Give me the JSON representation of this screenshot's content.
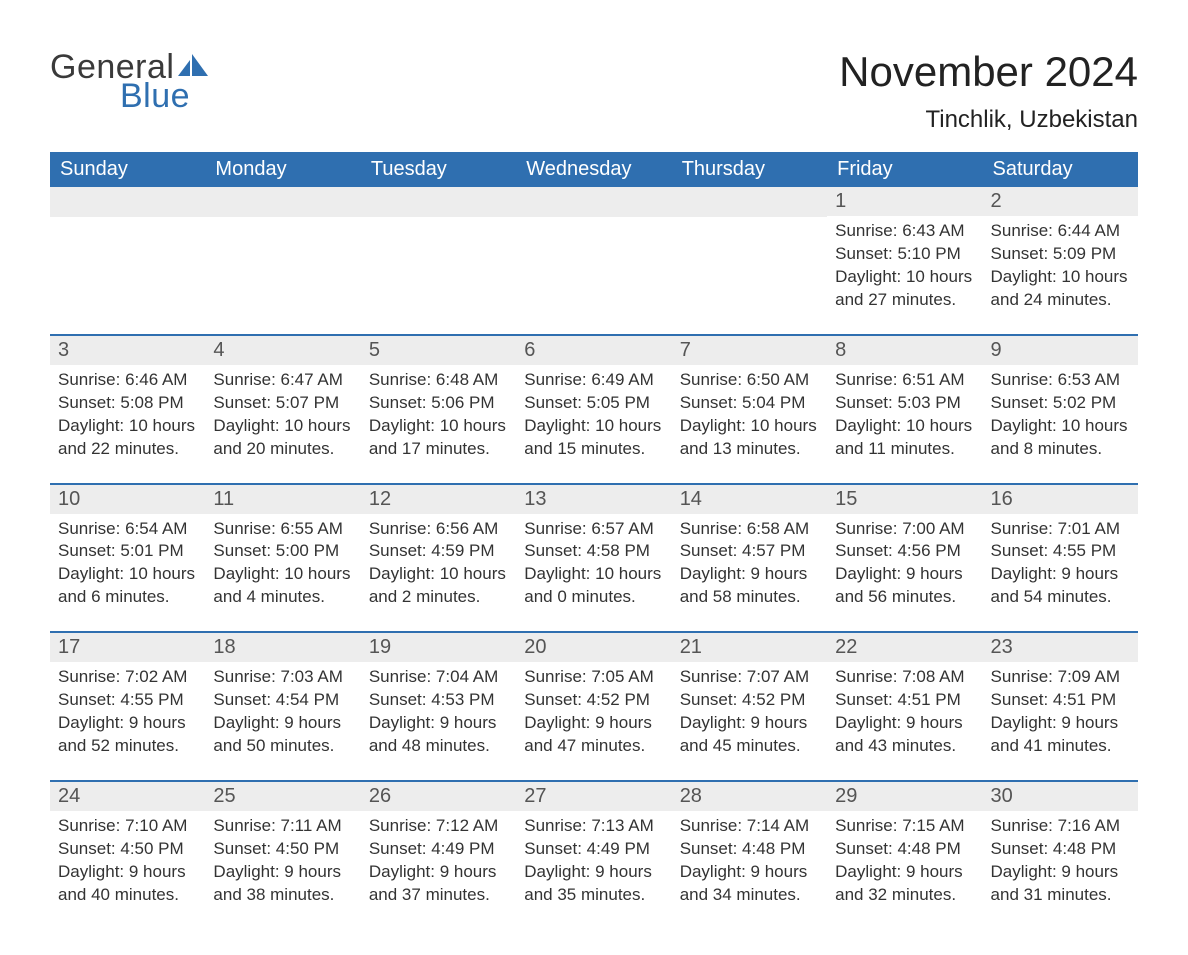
{
  "logo": {
    "text1": "General",
    "text2": "Blue",
    "icon_color": "#2f6fb0"
  },
  "title": "November 2024",
  "location": "Tinchlik, Uzbekistan",
  "colors": {
    "header_bg": "#2f6fb0",
    "header_text": "#ffffff",
    "daynum_bg": "#ededed",
    "row_border": "#2f6fb0",
    "body_text": "#333333",
    "title_text": "#222222"
  },
  "fonts": {
    "title_size_pt": 32,
    "location_size_pt": 18,
    "dow_size_pt": 15,
    "daynum_size_pt": 15,
    "body_size_pt": 13
  },
  "days_of_week": [
    "Sunday",
    "Monday",
    "Tuesday",
    "Wednesday",
    "Thursday",
    "Friday",
    "Saturday"
  ],
  "weeks": [
    [
      null,
      null,
      null,
      null,
      null,
      {
        "n": "1",
        "sunrise": "Sunrise: 6:43 AM",
        "sunset": "Sunset: 5:10 PM",
        "dl1": "Daylight: 10 hours",
        "dl2": "and 27 minutes."
      },
      {
        "n": "2",
        "sunrise": "Sunrise: 6:44 AM",
        "sunset": "Sunset: 5:09 PM",
        "dl1": "Daylight: 10 hours",
        "dl2": "and 24 minutes."
      }
    ],
    [
      {
        "n": "3",
        "sunrise": "Sunrise: 6:46 AM",
        "sunset": "Sunset: 5:08 PM",
        "dl1": "Daylight: 10 hours",
        "dl2": "and 22 minutes."
      },
      {
        "n": "4",
        "sunrise": "Sunrise: 6:47 AM",
        "sunset": "Sunset: 5:07 PM",
        "dl1": "Daylight: 10 hours",
        "dl2": "and 20 minutes."
      },
      {
        "n": "5",
        "sunrise": "Sunrise: 6:48 AM",
        "sunset": "Sunset: 5:06 PM",
        "dl1": "Daylight: 10 hours",
        "dl2": "and 17 minutes."
      },
      {
        "n": "6",
        "sunrise": "Sunrise: 6:49 AM",
        "sunset": "Sunset: 5:05 PM",
        "dl1": "Daylight: 10 hours",
        "dl2": "and 15 minutes."
      },
      {
        "n": "7",
        "sunrise": "Sunrise: 6:50 AM",
        "sunset": "Sunset: 5:04 PM",
        "dl1": "Daylight: 10 hours",
        "dl2": "and 13 minutes."
      },
      {
        "n": "8",
        "sunrise": "Sunrise: 6:51 AM",
        "sunset": "Sunset: 5:03 PM",
        "dl1": "Daylight: 10 hours",
        "dl2": "and 11 minutes."
      },
      {
        "n": "9",
        "sunrise": "Sunrise: 6:53 AM",
        "sunset": "Sunset: 5:02 PM",
        "dl1": "Daylight: 10 hours",
        "dl2": "and 8 minutes."
      }
    ],
    [
      {
        "n": "10",
        "sunrise": "Sunrise: 6:54 AM",
        "sunset": "Sunset: 5:01 PM",
        "dl1": "Daylight: 10 hours",
        "dl2": "and 6 minutes."
      },
      {
        "n": "11",
        "sunrise": "Sunrise: 6:55 AM",
        "sunset": "Sunset: 5:00 PM",
        "dl1": "Daylight: 10 hours",
        "dl2": "and 4 minutes."
      },
      {
        "n": "12",
        "sunrise": "Sunrise: 6:56 AM",
        "sunset": "Sunset: 4:59 PM",
        "dl1": "Daylight: 10 hours",
        "dl2": "and 2 minutes."
      },
      {
        "n": "13",
        "sunrise": "Sunrise: 6:57 AM",
        "sunset": "Sunset: 4:58 PM",
        "dl1": "Daylight: 10 hours",
        "dl2": "and 0 minutes."
      },
      {
        "n": "14",
        "sunrise": "Sunrise: 6:58 AM",
        "sunset": "Sunset: 4:57 PM",
        "dl1": "Daylight: 9 hours",
        "dl2": "and 58 minutes."
      },
      {
        "n": "15",
        "sunrise": "Sunrise: 7:00 AM",
        "sunset": "Sunset: 4:56 PM",
        "dl1": "Daylight: 9 hours",
        "dl2": "and 56 minutes."
      },
      {
        "n": "16",
        "sunrise": "Sunrise: 7:01 AM",
        "sunset": "Sunset: 4:55 PM",
        "dl1": "Daylight: 9 hours",
        "dl2": "and 54 minutes."
      }
    ],
    [
      {
        "n": "17",
        "sunrise": "Sunrise: 7:02 AM",
        "sunset": "Sunset: 4:55 PM",
        "dl1": "Daylight: 9 hours",
        "dl2": "and 52 minutes."
      },
      {
        "n": "18",
        "sunrise": "Sunrise: 7:03 AM",
        "sunset": "Sunset: 4:54 PM",
        "dl1": "Daylight: 9 hours",
        "dl2": "and 50 minutes."
      },
      {
        "n": "19",
        "sunrise": "Sunrise: 7:04 AM",
        "sunset": "Sunset: 4:53 PM",
        "dl1": "Daylight: 9 hours",
        "dl2": "and 48 minutes."
      },
      {
        "n": "20",
        "sunrise": "Sunrise: 7:05 AM",
        "sunset": "Sunset: 4:52 PM",
        "dl1": "Daylight: 9 hours",
        "dl2": "and 47 minutes."
      },
      {
        "n": "21",
        "sunrise": "Sunrise: 7:07 AM",
        "sunset": "Sunset: 4:52 PM",
        "dl1": "Daylight: 9 hours",
        "dl2": "and 45 minutes."
      },
      {
        "n": "22",
        "sunrise": "Sunrise: 7:08 AM",
        "sunset": "Sunset: 4:51 PM",
        "dl1": "Daylight: 9 hours",
        "dl2": "and 43 minutes."
      },
      {
        "n": "23",
        "sunrise": "Sunrise: 7:09 AM",
        "sunset": "Sunset: 4:51 PM",
        "dl1": "Daylight: 9 hours",
        "dl2": "and 41 minutes."
      }
    ],
    [
      {
        "n": "24",
        "sunrise": "Sunrise: 7:10 AM",
        "sunset": "Sunset: 4:50 PM",
        "dl1": "Daylight: 9 hours",
        "dl2": "and 40 minutes."
      },
      {
        "n": "25",
        "sunrise": "Sunrise: 7:11 AM",
        "sunset": "Sunset: 4:50 PM",
        "dl1": "Daylight: 9 hours",
        "dl2": "and 38 minutes."
      },
      {
        "n": "26",
        "sunrise": "Sunrise: 7:12 AM",
        "sunset": "Sunset: 4:49 PM",
        "dl1": "Daylight: 9 hours",
        "dl2": "and 37 minutes."
      },
      {
        "n": "27",
        "sunrise": "Sunrise: 7:13 AM",
        "sunset": "Sunset: 4:49 PM",
        "dl1": "Daylight: 9 hours",
        "dl2": "and 35 minutes."
      },
      {
        "n": "28",
        "sunrise": "Sunrise: 7:14 AM",
        "sunset": "Sunset: 4:48 PM",
        "dl1": "Daylight: 9 hours",
        "dl2": "and 34 minutes."
      },
      {
        "n": "29",
        "sunrise": "Sunrise: 7:15 AM",
        "sunset": "Sunset: 4:48 PM",
        "dl1": "Daylight: 9 hours",
        "dl2": "and 32 minutes."
      },
      {
        "n": "30",
        "sunrise": "Sunrise: 7:16 AM",
        "sunset": "Sunset: 4:48 PM",
        "dl1": "Daylight: 9 hours",
        "dl2": "and 31 minutes."
      }
    ]
  ]
}
